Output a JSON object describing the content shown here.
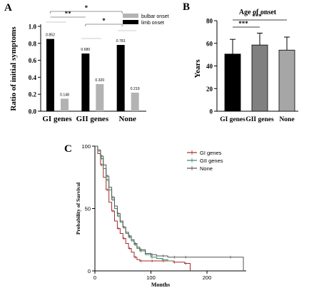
{
  "panels": {
    "a": "A",
    "b": "B",
    "c": "C"
  },
  "chart_data": [
    {
      "type": "bar",
      "panel": "A",
      "ylabel": "Ratio of initial symptoms",
      "categories": [
        "GI genes",
        "GII genes",
        "None"
      ],
      "ylim": [
        0,
        1.0
      ],
      "yticks": [
        "0.0",
        "0.2",
        "0.4",
        "0.6",
        "0.8",
        "1.0"
      ],
      "legend_position": "top-right",
      "series": [
        {
          "name": "limb onset",
          "values": [
            0.852,
            0.68,
            0.781
          ],
          "labels": [
            "0.852",
            "0.680",
            "0.781"
          ],
          "color": "#000000"
        },
        {
          "name": "bulbar onset",
          "values": [
            0.148,
            0.32,
            0.219
          ],
          "labels": [
            "0.148",
            "0.320",
            "0.219"
          ],
          "color": "#b3b3b3"
        }
      ],
      "significance": [
        {
          "label": "**"
        },
        {
          "label": "*"
        },
        {
          "label": "*"
        }
      ]
    },
    {
      "type": "bar",
      "panel": "B",
      "title": "Age of onset",
      "ylabel": "Years",
      "categories": [
        "GI genes",
        "GII genes",
        "None"
      ],
      "ylim": [
        0,
        80
      ],
      "yticks": [
        "0",
        "20",
        "40",
        "60",
        "80"
      ],
      "values": [
        50.5,
        58.5,
        54
      ],
      "errors": [
        13,
        10.5,
        11.5
      ],
      "colors": [
        "#000000",
        "#808080",
        "#a6a6a6"
      ],
      "significance": [
        {
          "label": "***"
        },
        {
          "label": "***"
        }
      ]
    },
    {
      "type": "line",
      "panel": "C",
      "ylabel": "Probability of Survival",
      "xlabel": "Months",
      "xlim": [
        0,
        270
      ],
      "ylim": [
        0,
        100
      ],
      "xticks": [
        "0",
        "100",
        "200"
      ],
      "yticks": [
        "0",
        "50",
        "100"
      ],
      "legend_position": "top-right",
      "series": [
        {
          "name": "GI genes",
          "color": "#a52a2a",
          "x": [
            0,
            5,
            10,
            15,
            20,
            25,
            30,
            35,
            40,
            45,
            50,
            55,
            60,
            65,
            70,
            75,
            80,
            90,
            100,
            110,
            120,
            130,
            140,
            150,
            160,
            165,
            170
          ],
          "y": [
            100,
            94,
            85,
            75,
            65,
            55,
            48,
            40,
            34,
            30,
            26,
            22,
            18,
            15,
            11,
            9,
            8,
            8,
            8,
            8,
            8,
            8,
            7,
            7,
            6,
            6,
            0
          ]
        },
        {
          "name": "GII genes",
          "color": "#3a8a5a",
          "x": [
            0,
            5,
            10,
            15,
            20,
            25,
            30,
            35,
            40,
            45,
            50,
            55,
            60,
            65,
            70,
            75,
            80,
            90,
            100,
            110,
            120,
            130,
            140
          ],
          "y": [
            100,
            96,
            90,
            82,
            73,
            65,
            57,
            50,
            44,
            39,
            35,
            30,
            27,
            24,
            21,
            18,
            16,
            13,
            11,
            10,
            9,
            8,
            8
          ]
        },
        {
          "name": "None",
          "color": "#555555",
          "x": [
            0,
            5,
            10,
            15,
            20,
            25,
            30,
            35,
            40,
            45,
            50,
            55,
            60,
            65,
            70,
            75,
            80,
            90,
            100,
            110,
            120,
            130,
            140,
            150,
            160,
            200,
            240,
            265
          ],
          "y": [
            100,
            97,
            92,
            85,
            76,
            67,
            59,
            52,
            46,
            40,
            35,
            31,
            28,
            25,
            22,
            19,
            17,
            14,
            13,
            12,
            12,
            11,
            11,
            11,
            11,
            11,
            11,
            0
          ]
        }
      ]
    }
  ]
}
